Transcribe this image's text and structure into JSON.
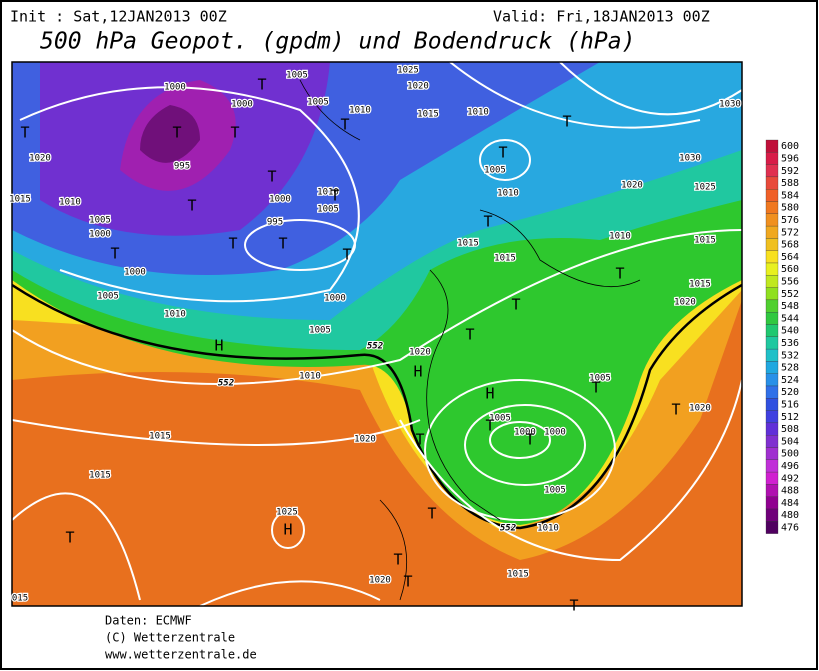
{
  "header": {
    "init": "Init : Sat,12JAN2013 00Z",
    "valid": "Valid: Fri,18JAN2013 00Z",
    "title": "500 hPa Geopot. (gpdm) und Bodendruck (hPa)"
  },
  "colorbar": {
    "labels": [
      "600",
      "596",
      "592",
      "588",
      "584",
      "580",
      "576",
      "572",
      "568",
      "564",
      "560",
      "556",
      "552",
      "548",
      "544",
      "540",
      "536",
      "532",
      "528",
      "524",
      "520",
      "516",
      "512",
      "508",
      "504",
      "500",
      "496",
      "492",
      "488",
      "484",
      "480",
      "476"
    ]
  },
  "map": {
    "isobar_labels": [
      "1000",
      "1000",
      "1005",
      "1005",
      "1010",
      "1025",
      "1020",
      "1015",
      "1010",
      "1005",
      "1010",
      "1020",
      "1030",
      "1025",
      "1020",
      "1015",
      "1010",
      "1005",
      "1000",
      "995",
      "1000",
      "995",
      "1005",
      "1010",
      "1015",
      "1015",
      "1010",
      "1015",
      "1000",
      "1005",
      "1010",
      "1005",
      "1000",
      "1015",
      "1020",
      "1020",
      "1010",
      "1015",
      "1020",
      "1005",
      "1005",
      "1000",
      "1000",
      "1005",
      "1010",
      "1015",
      "1015",
      "1025",
      "1020",
      "1020",
      "015",
      "1030"
    ],
    "pressure_centers": [
      "T",
      "T",
      "T",
      "T",
      "T",
      "T",
      "T",
      "T",
      "T",
      "T",
      "T",
      "T",
      "T",
      "T",
      "T",
      "T",
      "T",
      "T",
      "T",
      "T",
      "T",
      "T",
      "T",
      "T",
      "T",
      "T",
      "T",
      "T",
      "H",
      "H",
      "H",
      "H"
    ],
    "contour_labels": [
      "552",
      "552",
      "552"
    ]
  },
  "footer": {
    "lines": [
      "Daten: ECMWF",
      "(C) Wetterzentrale",
      "www.wetterzentrale.de"
    ]
  }
}
